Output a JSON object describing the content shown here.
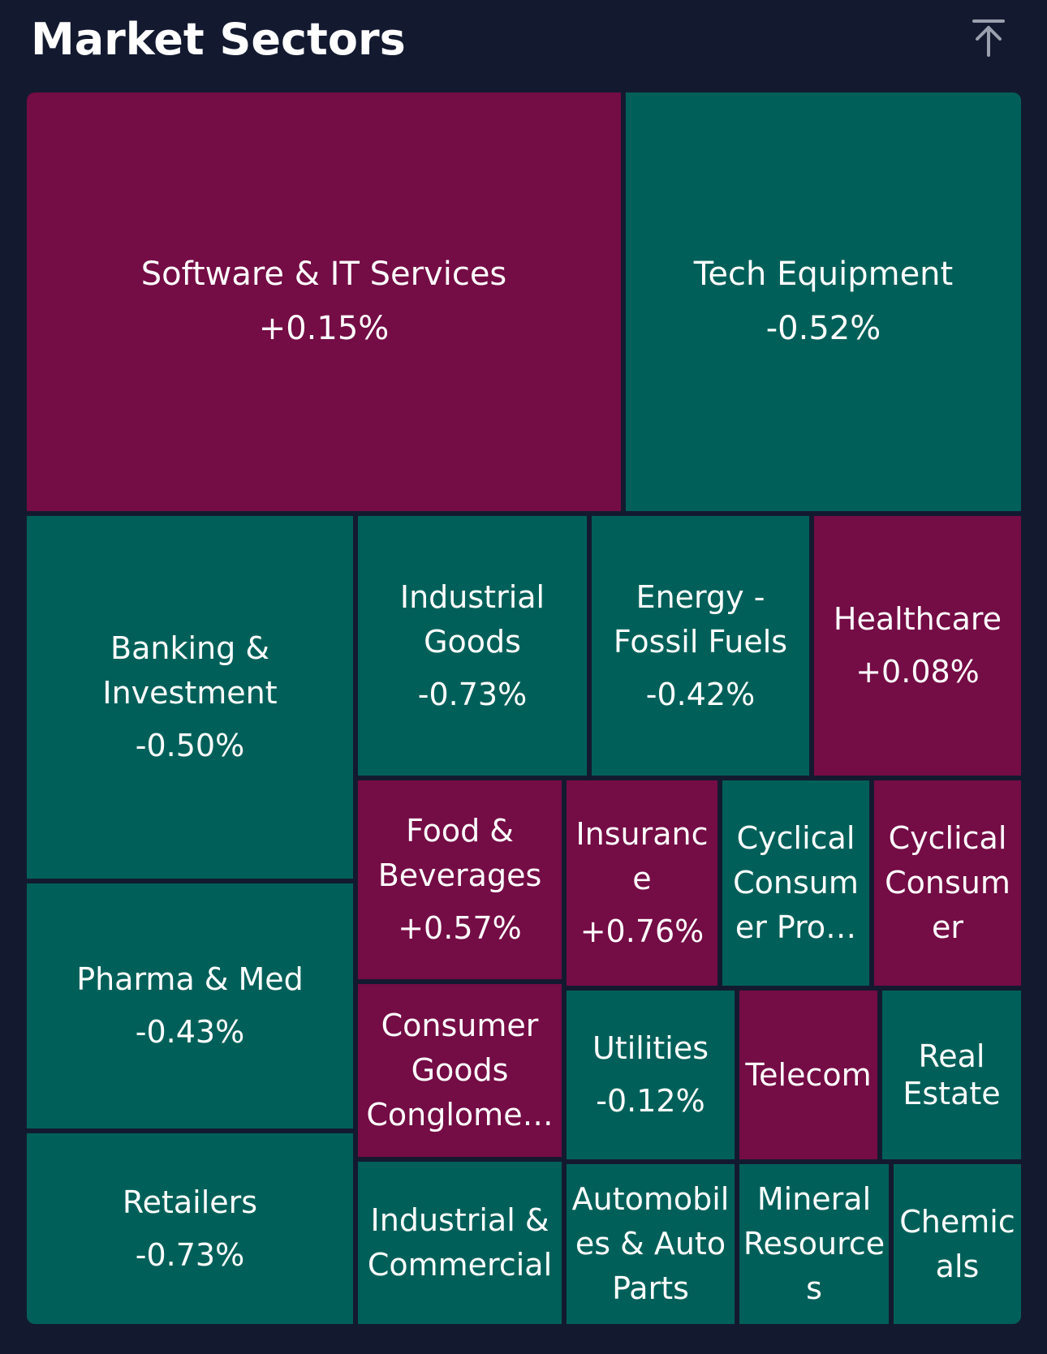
{
  "header": {
    "title": "Market Sectors",
    "collapse_icon": "arrow-up-to-line-icon"
  },
  "colors": {
    "background": "#131a30",
    "positive": "#740c45",
    "negative": "#006059",
    "text": "#ffffff",
    "icon": "#9aa0ad"
  },
  "sectors": [
    {
      "name": "Software & IT Services",
      "change": "+0.15%"
    },
    {
      "name": "Tech Equipment",
      "change": "-0.52%"
    },
    {
      "name": "Banking & Investment",
      "change": "-0.50%"
    },
    {
      "name": "Industrial Goods",
      "change": "-0.73%"
    },
    {
      "name": "Energy - Fossil Fuels",
      "change": "-0.42%"
    },
    {
      "name": "Healthcare",
      "change": "+0.08%"
    },
    {
      "name": "Food & Beverages",
      "change": "+0.57%"
    },
    {
      "name": "Insurance",
      "change": "+0.76%"
    },
    {
      "name": "Cyclical Consumer Pro…",
      "change": ""
    },
    {
      "name": "Cyclical Consumer",
      "change": ""
    },
    {
      "name": "Pharma & Med",
      "change": "-0.43%"
    },
    {
      "name": "Consumer Goods Conglome…",
      "change": ""
    },
    {
      "name": "Utilities",
      "change": "-0.12%"
    },
    {
      "name": "Telecom",
      "change": ""
    },
    {
      "name": "Real Estate",
      "change": ""
    },
    {
      "name": "Retailers",
      "change": "-0.73%"
    },
    {
      "name": "Industrial & Commercial",
      "change": ""
    },
    {
      "name": "Automobiles & Auto Parts",
      "change": ""
    },
    {
      "name": "Mineral Resources",
      "change": ""
    },
    {
      "name": "Chemicals",
      "change": ""
    }
  ]
}
